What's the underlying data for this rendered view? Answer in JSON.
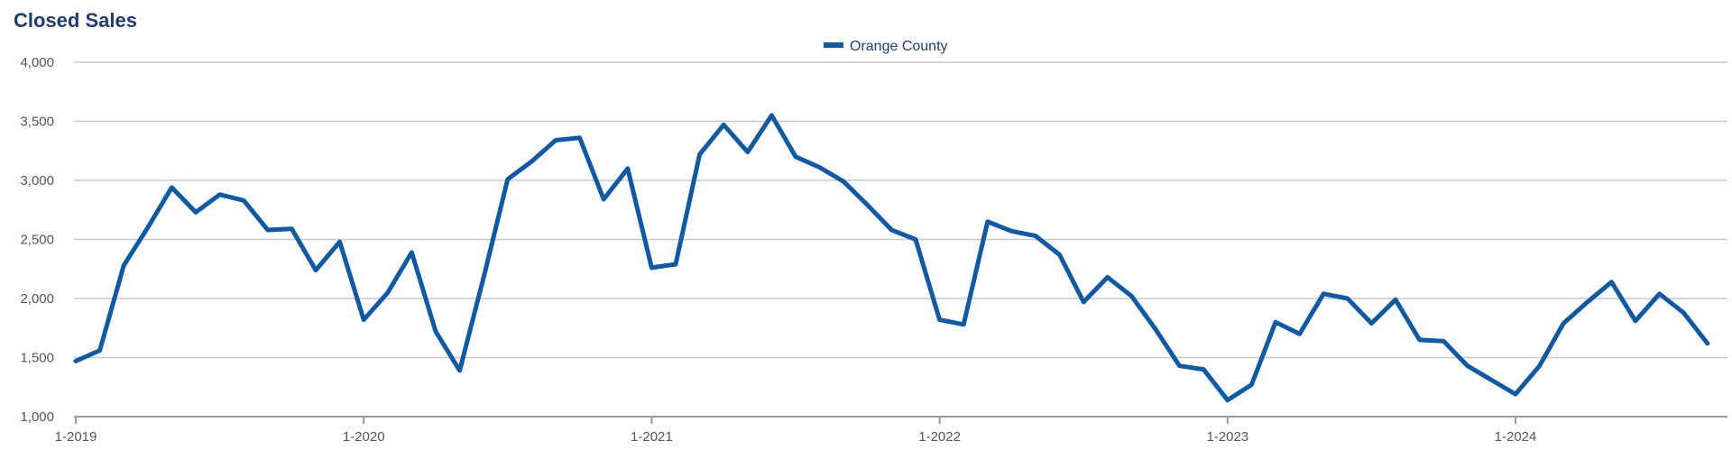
{
  "chart_data": {
    "type": "line",
    "title": "Closed Sales",
    "xlabel": "",
    "ylabel": "",
    "ylim": [
      1000,
      4000
    ],
    "yticks": [
      1000,
      1500,
      2000,
      2500,
      3000,
      3500,
      4000
    ],
    "ytick_labels": [
      "1,000",
      "1,500",
      "2,000",
      "2,500",
      "3,000",
      "3,500",
      "4,000"
    ],
    "xtick_labels": [
      "1-2019",
      "1-2020",
      "1-2021",
      "1-2022",
      "1-2023",
      "1-2024"
    ],
    "xtick_months": [
      "2019-01",
      "2020-01",
      "2021-01",
      "2022-01",
      "2023-01",
      "2024-01"
    ],
    "grid": true,
    "legend_position": "top-center",
    "x": [
      "2019-01",
      "2019-02",
      "2019-03",
      "2019-04",
      "2019-05",
      "2019-06",
      "2019-07",
      "2019-08",
      "2019-09",
      "2019-10",
      "2019-11",
      "2019-12",
      "2020-01",
      "2020-02",
      "2020-03",
      "2020-04",
      "2020-05",
      "2020-06",
      "2020-07",
      "2020-08",
      "2020-09",
      "2020-10",
      "2020-11",
      "2020-12",
      "2021-01",
      "2021-02",
      "2021-03",
      "2021-04",
      "2021-05",
      "2021-06",
      "2021-07",
      "2021-08",
      "2021-09",
      "2021-10",
      "2021-11",
      "2021-12",
      "2022-01",
      "2022-02",
      "2022-03",
      "2022-04",
      "2022-05",
      "2022-06",
      "2022-07",
      "2022-08",
      "2022-09",
      "2022-10",
      "2022-11",
      "2022-12",
      "2023-01",
      "2023-02",
      "2023-03",
      "2023-04",
      "2023-05",
      "2023-06",
      "2023-07",
      "2023-08",
      "2023-09",
      "2023-10",
      "2023-11",
      "2023-12",
      "2024-01",
      "2024-02",
      "2024-03",
      "2024-04",
      "2024-05",
      "2024-06",
      "2024-07",
      "2024-08",
      "2024-09"
    ],
    "series": [
      {
        "name": "Orange County",
        "color": "#0e5aa7",
        "values": [
          1470,
          1560,
          2280,
          2600,
          2940,
          2730,
          2880,
          2830,
          2580,
          2590,
          2240,
          2480,
          1820,
          2050,
          2390,
          1720,
          1390,
          2180,
          3010,
          3160,
          3340,
          3360,
          2840,
          3100,
          2260,
          2290,
          3220,
          3470,
          3240,
          3550,
          3200,
          3110,
          2990,
          2790,
          2580,
          2500,
          1820,
          1780,
          2650,
          2570,
          2530,
          2370,
          1970,
          2180,
          2020,
          1740,
          1430,
          1400,
          1140,
          1270,
          1800,
          1700,
          2040,
          2000,
          1790,
          1990,
          1650,
          1640,
          1430,
          1310,
          1190,
          1430,
          1790,
          1970,
          2140,
          1810,
          2040,
          1880,
          1620
        ]
      }
    ]
  }
}
